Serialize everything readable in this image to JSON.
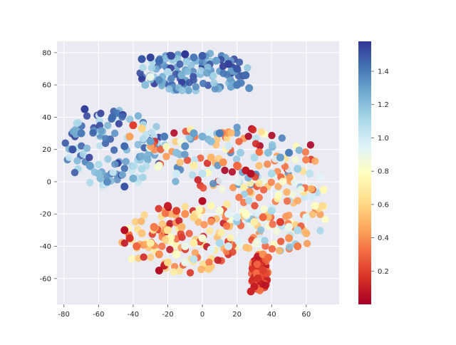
{
  "chart_data": {
    "type": "scatter",
    "title": "",
    "xlabel": "",
    "ylabel": "",
    "xlim": [
      -84,
      79
    ],
    "ylim": [
      -76,
      87
    ],
    "x_ticks": [
      -80,
      -60,
      -40,
      -20,
      0,
      20,
      40,
      60
    ],
    "y_ticks": [
      -60,
      -40,
      -20,
      0,
      20,
      40,
      60,
      80
    ],
    "grid": true,
    "style": "seaborn-darkgrid",
    "colormap": "RdYlBu",
    "colorbar": {
      "min": 0.0,
      "max": 1.58,
      "ticks": [
        0.2,
        0.4,
        0.6,
        0.8,
        1.0,
        1.2,
        1.4
      ],
      "tick_labels": [
        "0.2",
        "0.4",
        "0.6",
        "0.8",
        "1.0",
        "1.2",
        "1.4"
      ]
    },
    "clusters": [
      {
        "region": "top-arc",
        "center": [
          0,
          70
        ],
        "x_range": [
          -37,
          28
        ],
        "y_range": [
          55,
          80
        ],
        "value_range": [
          1.1,
          1.58
        ]
      },
      {
        "region": "left-ring",
        "center": [
          -50,
          15
        ],
        "x_range": [
          -80,
          -20
        ],
        "y_range": [
          -5,
          45
        ],
        "value_range": [
          1.0,
          1.58
        ]
      },
      {
        "region": "middle-band",
        "center": [
          20,
          15
        ],
        "x_range": [
          -35,
          70
        ],
        "y_range": [
          -5,
          35
        ],
        "value_range": [
          0.0,
          1.4
        ]
      },
      {
        "region": "lower-red-band",
        "center": [
          -10,
          -35
        ],
        "x_range": [
          -47,
          20
        ],
        "y_range": [
          -58,
          -15
        ],
        "value_range": [
          0.0,
          0.8
        ]
      },
      {
        "region": "lower-right",
        "center": [
          40,
          -25
        ],
        "x_range": [
          10,
          72
        ],
        "y_range": [
          -45,
          5
        ],
        "value_range": [
          0.2,
          1.2
        ]
      },
      {
        "region": "bottom-tail",
        "center": [
          33,
          -58
        ],
        "x_range": [
          28,
          38
        ],
        "y_range": [
          -68,
          -45
        ],
        "value_range": [
          0.05,
          0.4
        ]
      }
    ],
    "points": [
      {
        "x": -35,
        "y": 76,
        "v": 1.5
      },
      {
        "x": -30,
        "y": 77,
        "v": 1.55
      },
      {
        "x": -25,
        "y": 75,
        "v": 1.45
      },
      {
        "x": -18,
        "y": 78,
        "v": 1.52
      },
      {
        "x": -10,
        "y": 79,
        "v": 1.58
      },
      {
        "x": -5,
        "y": 77,
        "v": 1.4
      },
      {
        "x": 0,
        "y": 78,
        "v": 1.48
      },
      {
        "x": 8,
        "y": 75,
        "v": 1.3
      },
      {
        "x": 15,
        "y": 73,
        "v": 1.55
      },
      {
        "x": 20,
        "y": 70,
        "v": 1.5
      },
      {
        "x": 25,
        "y": 66,
        "v": 1.45
      },
      {
        "x": 27,
        "y": 58,
        "v": 1.35
      },
      {
        "x": -33,
        "y": 60,
        "v": 1.2
      },
      {
        "x": -30,
        "y": 65,
        "v": 0.9
      },
      {
        "x": -25,
        "y": 63,
        "v": 1.35
      },
      {
        "x": -20,
        "y": 68,
        "v": 1.1
      },
      {
        "x": -12,
        "y": 66,
        "v": 1.25
      },
      {
        "x": 20,
        "y": 60,
        "v": 1.4
      },
      {
        "x": -68,
        "y": 45,
        "v": 1.55
      },
      {
        "x": -52,
        "y": 40,
        "v": 1.45
      },
      {
        "x": -75,
        "y": 20,
        "v": 1.5
      },
      {
        "x": -70,
        "y": 30,
        "v": 1.4
      },
      {
        "x": -65,
        "y": 10,
        "v": 1.3
      },
      {
        "x": -60,
        "y": 5,
        "v": 1.2
      },
      {
        "x": -55,
        "y": 0,
        "v": 1.35
      },
      {
        "x": -45,
        "y": -3,
        "v": 1.5
      },
      {
        "x": -40,
        "y": 2,
        "v": 1.25
      },
      {
        "x": -35,
        "y": 8,
        "v": 1.1
      },
      {
        "x": -45,
        "y": 22,
        "v": 1.45
      },
      {
        "x": -40,
        "y": 35,
        "v": 0.2
      },
      {
        "x": -35,
        "y": 33,
        "v": 0.6
      },
      {
        "x": -42,
        "y": 28,
        "v": 0.45
      },
      {
        "x": -30,
        "y": 25,
        "v": 1.3
      },
      {
        "x": -22,
        "y": 28,
        "v": 1.4
      },
      {
        "x": -15,
        "y": 18,
        "v": 1.2
      },
      {
        "x": -10,
        "y": 22,
        "v": 1.35
      },
      {
        "x": -5,
        "y": 30,
        "v": 1.3
      },
      {
        "x": 0,
        "y": 28,
        "v": 1.25
      },
      {
        "x": 5,
        "y": 25,
        "v": 1.2
      },
      {
        "x": 10,
        "y": 30,
        "v": 1.4
      },
      {
        "x": 15,
        "y": 22,
        "v": 1.0
      },
      {
        "x": 22,
        "y": 18,
        "v": 1.15
      },
      {
        "x": 30,
        "y": 15,
        "v": 1.1
      },
      {
        "x": 38,
        "y": 18,
        "v": 1.2
      },
      {
        "x": 45,
        "y": 15,
        "v": 1.3
      },
      {
        "x": 50,
        "y": 18,
        "v": 1.4
      },
      {
        "x": 55,
        "y": 8,
        "v": 1.15
      },
      {
        "x": 62,
        "y": 5,
        "v": 1.05
      },
      {
        "x": 68,
        "y": 3,
        "v": 0.95
      },
      {
        "x": 5,
        "y": 15,
        "v": 0.5
      },
      {
        "x": 12,
        "y": 12,
        "v": 0.4
      },
      {
        "x": 20,
        "y": 10,
        "v": 0.3
      },
      {
        "x": 25,
        "y": 7,
        "v": 0.08
      },
      {
        "x": 28,
        "y": 5,
        "v": 0.05
      },
      {
        "x": -5,
        "y": 10,
        "v": 0.7
      },
      {
        "x": 0,
        "y": 5,
        "v": 1.05
      },
      {
        "x": 40,
        "y": 5,
        "v": 1.1
      },
      {
        "x": -15,
        "y": 5,
        "v": 1.0
      },
      {
        "x": -25,
        "y": 10,
        "v": 0.85
      },
      {
        "x": -20,
        "y": -15,
        "v": 0.1
      },
      {
        "x": -15,
        "y": -18,
        "v": 0.2
      },
      {
        "x": -10,
        "y": -20,
        "v": 0.4
      },
      {
        "x": -5,
        "y": -22,
        "v": 0.6
      },
      {
        "x": 0,
        "y": -12,
        "v": 0.05
      },
      {
        "x": 5,
        "y": -15,
        "v": 0.75
      },
      {
        "x": 10,
        "y": -18,
        "v": 0.85
      },
      {
        "x": 15,
        "y": -20,
        "v": 0.95
      },
      {
        "x": 20,
        "y": -22,
        "v": 1.0
      },
      {
        "x": 25,
        "y": -20,
        "v": 0.8
      },
      {
        "x": 30,
        "y": -25,
        "v": 0.7
      },
      {
        "x": 35,
        "y": -22,
        "v": 0.3
      },
      {
        "x": 40,
        "y": -18,
        "v": 1.1
      },
      {
        "x": 45,
        "y": -25,
        "v": 0.2
      },
      {
        "x": 50,
        "y": -28,
        "v": 0.9
      },
      {
        "x": 55,
        "y": -30,
        "v": 1.1
      },
      {
        "x": 60,
        "y": -22,
        "v": 0.95
      },
      {
        "x": 65,
        "y": -15,
        "v": 0.8
      },
      {
        "x": 70,
        "y": -5,
        "v": 0.75
      },
      {
        "x": 50,
        "y": -35,
        "v": 0.4
      },
      {
        "x": 55,
        "y": -40,
        "v": 0.35
      },
      {
        "x": 60,
        "y": -32,
        "v": 0.5
      },
      {
        "x": -45,
        "y": -30,
        "v": 0.05
      },
      {
        "x": -42,
        "y": -35,
        "v": 0.15
      },
      {
        "x": -38,
        "y": -40,
        "v": 0.3
      },
      {
        "x": -35,
        "y": -32,
        "v": 0.55
      },
      {
        "x": -30,
        "y": -38,
        "v": 0.7
      },
      {
        "x": -25,
        "y": -45,
        "v": 0.4
      },
      {
        "x": -22,
        "y": -52,
        "v": 0.1
      },
      {
        "x": -25,
        "y": -55,
        "v": 0.05
      },
      {
        "x": -20,
        "y": -50,
        "v": 0.6
      },
      {
        "x": -15,
        "y": -45,
        "v": 0.8
      },
      {
        "x": -10,
        "y": -40,
        "v": 0.9
      },
      {
        "x": -5,
        "y": -38,
        "v": 0.7
      },
      {
        "x": 0,
        "y": -35,
        "v": 0.85
      },
      {
        "x": 5,
        "y": -42,
        "v": 0.95
      },
      {
        "x": 10,
        "y": -38,
        "v": 1.1
      },
      {
        "x": 15,
        "y": -40,
        "v": 1.0
      },
      {
        "x": -10,
        "y": -50,
        "v": 0.9
      },
      {
        "x": -5,
        "y": -48,
        "v": 1.05
      },
      {
        "x": -28,
        "y": -28,
        "v": 0.35
      },
      {
        "x": -20,
        "y": -30,
        "v": 0.65
      },
      {
        "x": -12,
        "y": -28,
        "v": 0.5
      },
      {
        "x": 35,
        "y": -45,
        "v": 0.4
      },
      {
        "x": 38,
        "y": -47,
        "v": 0.3
      },
      {
        "x": 35,
        "y": -55,
        "v": 0.2
      },
      {
        "x": 32,
        "y": -60,
        "v": 0.15
      },
      {
        "x": 30,
        "y": -65,
        "v": 0.1
      },
      {
        "x": 28,
        "y": -68,
        "v": 0.12
      }
    ]
  }
}
